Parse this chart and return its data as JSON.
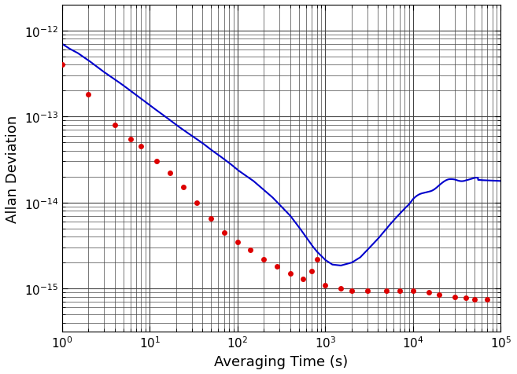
{
  "title": "",
  "xlabel": "Averaging Time (s)",
  "ylabel": "Allan Deviation",
  "background_color": "#ffffff",
  "line_color": "#0000cc",
  "dot_color": "#dd0000",
  "red_dots": {
    "x": [
      1.0,
      2.0,
      4.0,
      6.0,
      8.0,
      12,
      17,
      24,
      34,
      50,
      70,
      100,
      140,
      200,
      280,
      400,
      560,
      700,
      800,
      1000,
      1500,
      2000,
      3000,
      5000,
      7000,
      10000,
      15000,
      20000,
      30000,
      40000,
      50000,
      70000
    ],
    "y": [
      4e-13,
      1.8e-13,
      8e-14,
      5.5e-14,
      4.5e-14,
      3e-14,
      2.2e-14,
      1.5e-14,
      1e-14,
      6.5e-15,
      4.5e-15,
      3.5e-15,
      2.8e-15,
      2.2e-15,
      1.8e-15,
      1.5e-15,
      1.3e-15,
      1.6e-15,
      2.2e-15,
      1.1e-15,
      1e-15,
      9.5e-16,
      9.5e-16,
      9.5e-16,
      9.5e-16,
      9.5e-16,
      9e-16,
      8.5e-16,
      8e-16,
      7.8e-16,
      7.5e-16,
      7.5e-16
    ]
  },
  "blue_curve_x": [
    1.0,
    1.2,
    1.5,
    2.0,
    2.5,
    3.0,
    4.0,
    5.0,
    6.0,
    8.0,
    10,
    12,
    15,
    20,
    25,
    30,
    40,
    50,
    60,
    80,
    100,
    120,
    150,
    200,
    250,
    300,
    400,
    500,
    600,
    700,
    800,
    1000,
    1200,
    1500,
    2000,
    2500,
    3000,
    4000,
    5000,
    6000,
    8000,
    10000,
    12000,
    15000,
    20000,
    25000,
    30000,
    40000,
    50000,
    60000,
    80000,
    100000
  ],
  "blue_curve_y": [
    7e-13,
    6.2e-13,
    5.5e-13,
    4.5e-13,
    3.8e-13,
    3.3e-13,
    2.7e-13,
    2.3e-13,
    2e-13,
    1.6e-13,
    1.35e-13,
    1.18e-13,
    1e-13,
    8e-14,
    6.8e-14,
    6e-14,
    4.9e-14,
    4.1e-14,
    3.6e-14,
    2.9e-14,
    2.4e-14,
    2.1e-14,
    1.8e-14,
    1.4e-14,
    1.15e-14,
    9.5e-15,
    7e-15,
    5.2e-15,
    4e-15,
    3.2e-15,
    2.7e-15,
    2.15e-15,
    1.9e-15,
    1.85e-15,
    2e-15,
    2.3e-15,
    2.8e-15,
    3.8e-15,
    5e-15,
    6.2e-15,
    8.5e-15,
    1.05e-14,
    1.2e-14,
    1.4e-14,
    1.6e-14,
    1.75e-14,
    1.85e-14,
    1.9e-14,
    1.85e-14,
    1.82e-14,
    1.8e-14,
    1.78e-14
  ],
  "grid_color": "#444444",
  "tick_label_fontsize": 11,
  "axis_label_fontsize": 13
}
